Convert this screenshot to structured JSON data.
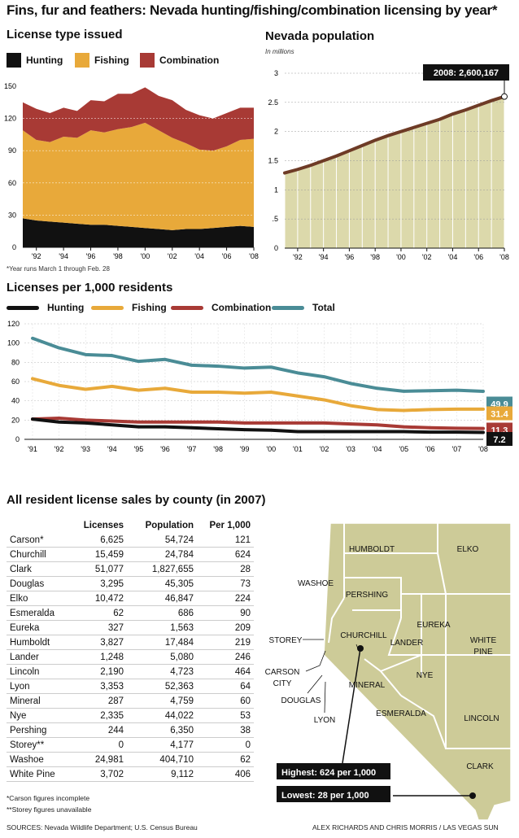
{
  "title": "Fins, fur and feathers: Nevada hunting/fishing/combination licensing by year*",
  "footnote_year": "*Year runs March 1 through Feb. 28",
  "colors": {
    "hunting": "#111111",
    "fishing": "#e8a93a",
    "combination": "#a83a35",
    "total": "#4a8c96",
    "population": "#6e3b26",
    "pop_fill": "#dcd9ab",
    "map": "#cdcb98"
  },
  "chart_data": [
    {
      "type": "area",
      "title": "License type issued",
      "legend": [
        "Hunting",
        "Fishing",
        "Combination"
      ],
      "x": [
        1991,
        1992,
        1993,
        1994,
        1995,
        1996,
        1997,
        1998,
        1999,
        2000,
        2001,
        2002,
        2003,
        2004,
        2005,
        2006,
        2007,
        2008
      ],
      "xticks": [
        "'92",
        "'94",
        "'96",
        "'98",
        "'00",
        "'02",
        "'04",
        "'06",
        "'08"
      ],
      "yticks": [
        "0",
        "30",
        "60",
        "90",
        "120",
        "150"
      ],
      "ylim": [
        0,
        150
      ],
      "series": [
        {
          "name": "Hunting",
          "values": [
            27,
            25,
            24,
            23,
            22,
            21,
            21,
            20,
            19,
            18,
            17,
            16,
            17,
            17,
            18,
            19,
            20,
            19
          ]
        },
        {
          "name": "Fishing",
          "values": [
            82,
            75,
            74,
            80,
            80,
            88,
            86,
            90,
            93,
            98,
            92,
            86,
            80,
            74,
            72,
            75,
            80,
            82
          ]
        },
        {
          "name": "Combination",
          "values": [
            26,
            29,
            27,
            27,
            25,
            28,
            29,
            33,
            31,
            33,
            32,
            35,
            31,
            32,
            30,
            31,
            30,
            29
          ]
        }
      ]
    },
    {
      "type": "area",
      "title": "Nevada population",
      "ylabel": "In millions",
      "x": [
        1991,
        1992,
        1993,
        1994,
        1995,
        1996,
        1997,
        1998,
        1999,
        2000,
        2001,
        2002,
        2003,
        2004,
        2005,
        2006,
        2007,
        2008
      ],
      "xticks": [
        "'92",
        "'94",
        "'96",
        "'98",
        "'00",
        "'02",
        "'04",
        "'06",
        "'08"
      ],
      "yticks": [
        "0",
        ".5",
        "1",
        "1.5",
        "2",
        "2.5",
        "3"
      ],
      "ylim": [
        0,
        3
      ],
      "values": [
        1.29,
        1.35,
        1.42,
        1.5,
        1.58,
        1.67,
        1.76,
        1.85,
        1.93,
        2.0,
        2.07,
        2.14,
        2.21,
        2.3,
        2.37,
        2.45,
        2.53,
        2.6
      ],
      "annotation": "2008: 2,600,167"
    },
    {
      "type": "line",
      "title": "Licenses per 1,000 residents",
      "legend": [
        "Hunting",
        "Fishing",
        "Combination",
        "Total"
      ],
      "categories": [
        "'91",
        "'92",
        "'93",
        "'94",
        "'95",
        "'96",
        "'97",
        "'98",
        "'99",
        "'00",
        "'01",
        "'02",
        "'03",
        "'04",
        "'05",
        "'06",
        "'07",
        "'08"
      ],
      "yticks": [
        "0",
        "20",
        "40",
        "60",
        "80",
        "100",
        "120"
      ],
      "ylim": [
        0,
        120
      ],
      "series": [
        {
          "name": "Hunting",
          "values": [
            21,
            18,
            17,
            15,
            13,
            13,
            12,
            11,
            10,
            9.5,
            8,
            8,
            8,
            8,
            8,
            7.5,
            7.5,
            7.2
          ],
          "end_label": "7.2"
        },
        {
          "name": "Fishing",
          "values": [
            63,
            56,
            52,
            55,
            51,
            53,
            49,
            49,
            48,
            49,
            45,
            41,
            35,
            31,
            30,
            31,
            31.4,
            31.4
          ],
          "end_label": "31.4"
        },
        {
          "name": "Combination",
          "values": [
            21,
            22,
            20,
            19,
            18,
            18,
            18,
            18,
            17,
            17,
            17,
            17,
            16,
            15,
            13,
            12,
            11.5,
            11.3
          ],
          "end_label": "11.3"
        },
        {
          "name": "Total",
          "values": [
            105,
            95,
            88,
            87,
            81,
            83,
            77,
            76,
            74,
            75,
            69,
            65,
            58,
            53,
            50,
            50.5,
            51,
            49.9
          ],
          "end_label": "49.9"
        }
      ]
    },
    {
      "type": "table",
      "title": "All resident license sales by county (in 2007)",
      "columns": [
        "",
        "Licenses",
        "Population",
        "Per 1,000"
      ],
      "rows": [
        [
          "Carson*",
          "6,625",
          "54,724",
          "121"
        ],
        [
          "Churchill",
          "15,459",
          "24,784",
          "624"
        ],
        [
          "Clark",
          "51,077",
          "1,827,655",
          "28"
        ],
        [
          "Douglas",
          "3,295",
          "45,305",
          "73"
        ],
        [
          "Elko",
          "10,472",
          "46,847",
          "224"
        ],
        [
          "Esmeralda",
          "62",
          "686",
          "90"
        ],
        [
          "Eureka",
          "327",
          "1,563",
          "209"
        ],
        [
          "Humboldt",
          "3,827",
          "17,484",
          "219"
        ],
        [
          "Lander",
          "1,248",
          "5,080",
          "246"
        ],
        [
          "Lincoln",
          "2,190",
          "4,723",
          "464"
        ],
        [
          "Lyon",
          "3,353",
          "52,363",
          "64"
        ],
        [
          "Mineral",
          "287",
          "4,759",
          "60"
        ],
        [
          "Nye",
          "2,335",
          "44,022",
          "53"
        ],
        [
          "Pershing",
          "244",
          "6,350",
          "38"
        ],
        [
          "Storey**",
          "0",
          "4,177",
          "0"
        ],
        [
          "Washoe",
          "24,981",
          "404,710",
          "62"
        ],
        [
          "White Pine",
          "3,702",
          "9,112",
          "406"
        ]
      ]
    }
  ],
  "table_notes": [
    "*Carson figures incomplete",
    "**Storey figures unavailable"
  ],
  "map": {
    "counties": [
      "HUMBOLDT",
      "ELKO",
      "WASHOE",
      "PERSHING",
      "CHURCHILL",
      "STOREY",
      "EUREKA",
      "LANDER",
      "WHITE",
      "PINE",
      "CARSON",
      "CITY",
      "NYE",
      "DOUGLAS",
      "MINERAL",
      "LYON",
      "ESMERALDA",
      "LINCOLN",
      "CLARK"
    ],
    "highest": "Highest: 624 per 1,000",
    "lowest": "Lowest: 28 per 1,000"
  },
  "sources": "SOURCES: Nevada Wildlife Department; U.S. Census Bureau",
  "credit": "ALEX RICHARDS AND CHRIS MORRIS / LAS VEGAS SUN"
}
